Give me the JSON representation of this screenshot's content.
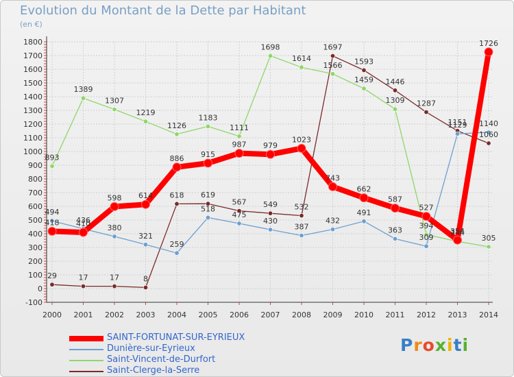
{
  "title": "Evolution du Montant de la Dette par Habitant",
  "unit": "(en €)",
  "logo": {
    "text": "Proxiti",
    "letter_colors": [
      "#3a7fc4",
      "#f08a1c",
      "#e84a2c",
      "#58b030",
      "#f0b400",
      "#3a7fc4",
      "#58b030"
    ]
  },
  "chart_data": {
    "type": "line",
    "title": "Evolution du Montant de la Dette par Habitant",
    "ylabel": "(en €)",
    "xlabel": "",
    "x": [
      "2000",
      "2001",
      "2002",
      "2003",
      "2004",
      "2005",
      "2006",
      "2007",
      "2008",
      "2009",
      "2010",
      "2011",
      "2012",
      "2013",
      "2014"
    ],
    "ylim": [
      -100,
      1800
    ],
    "yticks": [
      "-100",
      "0",
      "100",
      "200",
      "300",
      "400",
      "500",
      "600",
      "700",
      "800",
      "900",
      "1000",
      "1100",
      "1200",
      "1300",
      "1400",
      "1500",
      "1600",
      "1700",
      "1800"
    ],
    "grid": true,
    "legend_position": "bottom-left",
    "series": [
      {
        "name": "SAINT-FORTUNAT-SUR-EYRIEUX",
        "color": "#ff0000",
        "values": [
          418,
          410,
          598,
          614,
          886,
          915,
          987,
          979,
          1023,
          743,
          662,
          587,
          527,
          354,
          1726
        ],
        "labels": [
          "418",
          "410",
          "598",
          "614",
          "886",
          "915",
          "987",
          "979",
          "1023",
          "743",
          "662",
          "587",
          "527",
          "354",
          "1726"
        ]
      },
      {
        "name": "Dunière-sur-Eyrieux",
        "color": "#6c9fcf",
        "values": [
          494,
          436,
          380,
          321,
          259,
          518,
          475,
          430,
          387,
          432,
          491,
          363,
          309,
          1129,
          1140
        ],
        "labels": [
          "494",
          "436",
          "380",
          "321",
          "259",
          "518",
          "475",
          "430",
          "387",
          "432",
          "491",
          "363",
          "309",
          "1129",
          "1140"
        ]
      },
      {
        "name": "Saint-Vincent-de-Durfort",
        "color": "#8fd66a",
        "values": [
          893,
          1389,
          1307,
          1219,
          1126,
          1183,
          1111,
          1698,
          1614,
          1566,
          1459,
          1309,
          394,
          344,
          305
        ],
        "labels": [
          "893",
          "1389",
          "1307",
          "1219",
          "1126",
          "1183",
          "1111",
          "1698",
          "1614",
          "1566",
          "1459",
          "1309",
          "394",
          "344",
          "305"
        ]
      },
      {
        "name": "Saint-Clerge-la-Serre",
        "color": "#7a2a2a",
        "values": [
          29,
          17,
          17,
          8,
          618,
          619,
          567,
          549,
          532,
          1697,
          1593,
          1446,
          1287,
          1151,
          1060
        ],
        "labels": [
          "29",
          "17",
          "17",
          "8",
          "618",
          "619",
          "567",
          "549",
          "532",
          "1697",
          "1593",
          "1446",
          "1287",
          "1151",
          "1060"
        ]
      }
    ]
  },
  "legend": [
    {
      "label": "SAINT-FORTUNAT-SUR-EYRIEUX",
      "color": "#ff0000",
      "text_color": "#3366cc",
      "thickness": 8
    },
    {
      "label": "Dunière-sur-Eyrieux",
      "color": "#6c9fcf",
      "text_color": "#3366cc",
      "thickness": 2
    },
    {
      "label": "Saint-Vincent-de-Durfort",
      "color": "#8fd66a",
      "text_color": "#3366cc",
      "thickness": 2
    },
    {
      "label": "Saint-Clerge-la-Serre",
      "color": "#7a2a2a",
      "text_color": "#3366cc",
      "thickness": 2
    }
  ]
}
